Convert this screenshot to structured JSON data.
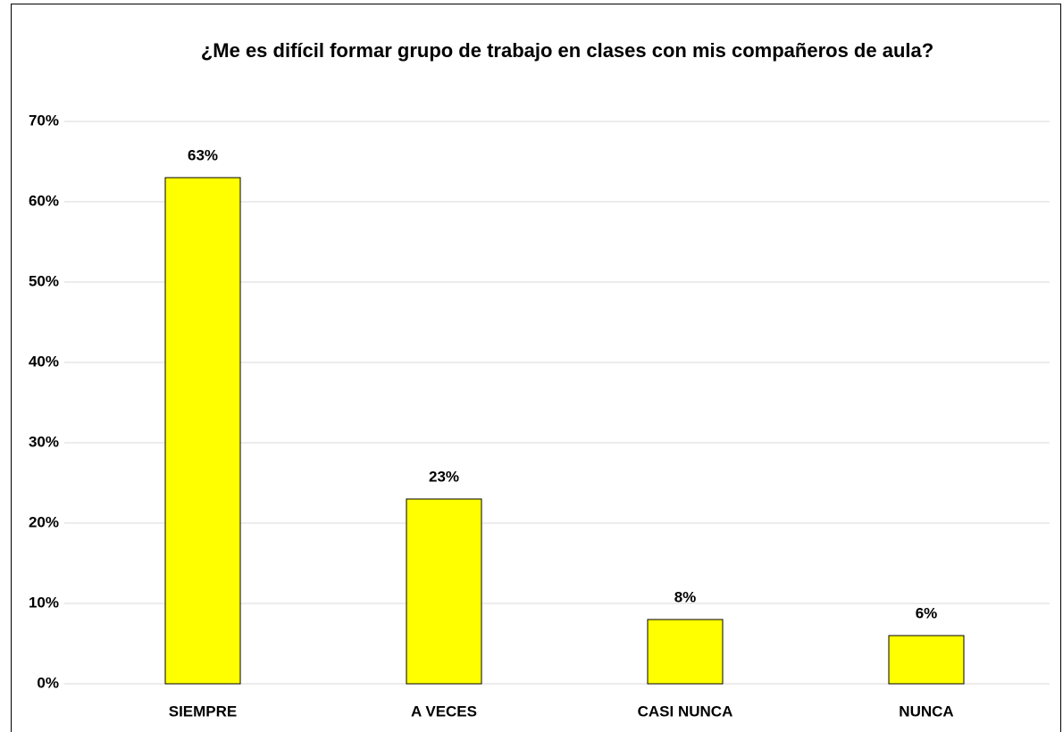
{
  "chart_data": {
    "type": "bar",
    "title": "¿Me es difícil formar grupo de trabajo en clases con mis compañeros de aula?",
    "categories": [
      "SIEMPRE",
      "A VECES",
      "CASI NUNCA",
      "NUNCA"
    ],
    "values": [
      63,
      23,
      8,
      6
    ],
    "value_labels": [
      "63%",
      "23%",
      "8%",
      "6%"
    ],
    "color": "#ffff00",
    "ylim": [
      0,
      70
    ],
    "yticks": [
      {
        "value": 0,
        "label": "0%"
      },
      {
        "value": 10,
        "label": "10%"
      },
      {
        "value": 20,
        "label": "20%"
      },
      {
        "value": 30,
        "label": "30%"
      },
      {
        "value": 40,
        "label": "40%"
      },
      {
        "value": 50,
        "label": "50%"
      },
      {
        "value": 60,
        "label": "60%"
      },
      {
        "value": 70,
        "label": "70%"
      }
    ],
    "grid": true
  }
}
